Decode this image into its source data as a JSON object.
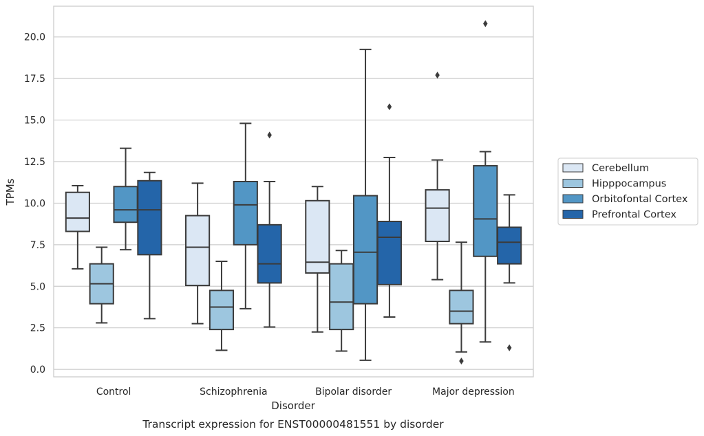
{
  "chart_data": {
    "type": "box",
    "caption": "Transcript expression for ENST00000481551 by disorder",
    "xlabel": "Disorder",
    "ylabel": "TPMs",
    "ylim": [
      -0.45,
      21.85
    ],
    "yticks": [
      0.0,
      2.5,
      5.0,
      7.5,
      10.0,
      12.5,
      15.0,
      17.5,
      20.0
    ],
    "ytick_labels": [
      "0.0",
      "2.5",
      "5.0",
      "7.5",
      "10.0",
      "12.5",
      "15.0",
      "17.5",
      "20.0"
    ],
    "grid": "horizontal",
    "legend_position": "right",
    "categories": [
      "Control",
      "Schizophrenia",
      "Bipolar disorder",
      "Major depression"
    ],
    "series": [
      {
        "name": "Cerebellum",
        "color": "#dbe7f4",
        "boxes": [
          {
            "whisker_low": 6.05,
            "q1": 8.3,
            "median": 9.1,
            "q3": 10.65,
            "whisker_high": 11.05,
            "outliers": []
          },
          {
            "whisker_low": 2.75,
            "q1": 5.05,
            "median": 7.35,
            "q3": 9.25,
            "whisker_high": 11.2,
            "outliers": []
          },
          {
            "whisker_low": 2.25,
            "q1": 5.8,
            "median": 6.45,
            "q3": 10.15,
            "whisker_high": 11.0,
            "outliers": []
          },
          {
            "whisker_low": 5.4,
            "q1": 7.7,
            "median": 9.7,
            "q3": 10.8,
            "whisker_high": 12.6,
            "outliers": [
              17.7
            ]
          }
        ]
      },
      {
        "name": "Hipppocampus",
        "color": "#9dc6df",
        "boxes": [
          {
            "whisker_low": 2.8,
            "q1": 3.95,
            "median": 5.15,
            "q3": 6.35,
            "whisker_high": 7.35,
            "outliers": []
          },
          {
            "whisker_low": 1.15,
            "q1": 2.4,
            "median": 3.75,
            "q3": 4.75,
            "whisker_high": 6.5,
            "outliers": []
          },
          {
            "whisker_low": 1.1,
            "q1": 2.4,
            "median": 4.05,
            "q3": 6.35,
            "whisker_high": 7.15,
            "outliers": []
          },
          {
            "whisker_low": 1.05,
            "q1": 2.75,
            "median": 3.5,
            "q3": 4.75,
            "whisker_high": 7.65,
            "outliers": [
              0.5
            ]
          }
        ]
      },
      {
        "name": "Orbitofontal Cortex",
        "color": "#5296c5",
        "boxes": [
          {
            "whisker_low": 7.2,
            "q1": 8.85,
            "median": 9.6,
            "q3": 11.0,
            "whisker_high": 13.3,
            "outliers": []
          },
          {
            "whisker_low": 3.65,
            "q1": 7.5,
            "median": 9.9,
            "q3": 11.3,
            "whisker_high": 14.8,
            "outliers": []
          },
          {
            "whisker_low": 0.55,
            "q1": 3.95,
            "median": 7.05,
            "q3": 10.45,
            "whisker_high": 19.25,
            "outliers": []
          },
          {
            "whisker_low": 1.65,
            "q1": 6.8,
            "median": 9.05,
            "q3": 12.25,
            "whisker_high": 13.1,
            "outliers": [
              20.8
            ]
          }
        ]
      },
      {
        "name": "Prefrontal Cortex",
        "color": "#2465a9",
        "boxes": [
          {
            "whisker_low": 3.05,
            "q1": 6.9,
            "median": 9.6,
            "q3": 11.35,
            "whisker_high": 11.85,
            "outliers": []
          },
          {
            "whisker_low": 2.55,
            "q1": 5.2,
            "median": 6.35,
            "q3": 8.7,
            "whisker_high": 11.3,
            "outliers": [
              14.1
            ]
          },
          {
            "whisker_low": 3.15,
            "q1": 5.1,
            "median": 7.95,
            "q3": 8.9,
            "whisker_high": 12.75,
            "outliers": [
              15.8
            ]
          },
          {
            "whisker_low": 5.2,
            "q1": 6.35,
            "median": 7.65,
            "q3": 8.55,
            "whisker_high": 10.5,
            "outliers": [
              1.3
            ]
          }
        ]
      }
    ]
  }
}
